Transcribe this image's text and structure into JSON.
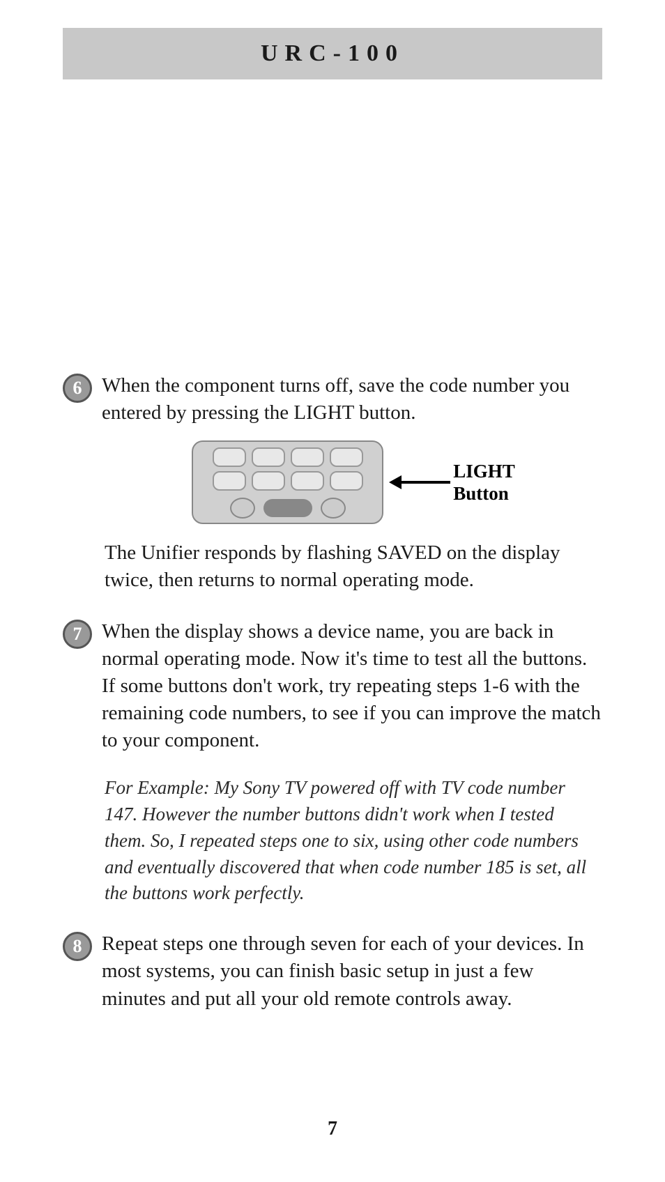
{
  "header": {
    "title": "URC-100"
  },
  "steps": [
    {
      "number": "6",
      "text": "When the component turns off, save the code number you entered by pressing the LIGHT button.",
      "circle_bg": "#999999",
      "circle_border": "#555555"
    },
    {
      "number": "7",
      "text": "When the display shows a device name, you are back in normal operating mode. Now it's time to test all the buttons. If some buttons don't work, try repeating steps 1-6 with the remaining code numbers, to see if you can improve the match to your component.",
      "circle_bg": "#999999",
      "circle_border": "#555555"
    },
    {
      "number": "8",
      "text": "Repeat steps one through seven for each of your devices. In most systems, you can finish basic setup in just a few minutes and put all your old remote controls away.",
      "circle_bg": "#999999",
      "circle_border": "#555555"
    }
  ],
  "callout": {
    "line1": "LIGHT",
    "line2": "Button"
  },
  "followup_6": "The Unifier responds by flashing SAVED on the display twice, then returns to normal operating mode.",
  "example_text": "For Example: My Sony TV powered off with TV code number 147. However the number buttons didn't work when I tested them. So, I repeated steps one to six, using other code numbers and eventually discovered that when code number 185 is set, all the buttons work perfectly.",
  "page_number": "7",
  "colors": {
    "header_bg": "#c8c8c8",
    "page_bg": "#ffffff",
    "text": "#1a1a1a"
  }
}
